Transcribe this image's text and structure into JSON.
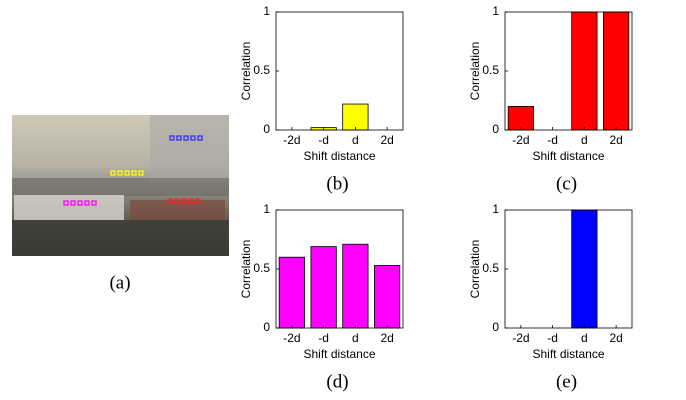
{
  "image_caption": "(a)",
  "chart_data": [
    {
      "type": "bar",
      "caption": "(b)",
      "xlabel": "Shift distance",
      "ylabel": "Correlation",
      "categories": [
        "-2d",
        "-d",
        "d",
        "2d"
      ],
      "values": [
        0,
        0.02,
        0.22,
        0
      ],
      "color": "#ffff00",
      "ylim": [
        0,
        1
      ],
      "yticks": [
        0,
        0.5,
        1
      ],
      "grid": false
    },
    {
      "type": "bar",
      "caption": "(c)",
      "xlabel": "Shift distance",
      "ylabel": "Correlation",
      "categories": [
        "-2d",
        "-d",
        "d",
        "2d"
      ],
      "values": [
        0.2,
        0,
        1,
        1
      ],
      "color": "#ff0000",
      "ylim": [
        0,
        1
      ],
      "yticks": [
        0,
        0.5,
        1
      ],
      "grid": false
    },
    {
      "type": "bar",
      "caption": "(d)",
      "xlabel": "Shift distance",
      "ylabel": "Correlation",
      "categories": [
        "-2d",
        "-d",
        "d",
        "2d"
      ],
      "values": [
        0.6,
        0.69,
        0.71,
        0.53
      ],
      "color": "#ff00ff",
      "ylim": [
        0,
        1
      ],
      "yticks": [
        0,
        0.5,
        1
      ],
      "grid": false
    },
    {
      "type": "bar",
      "caption": "(e)",
      "xlabel": "Shift distance",
      "ylabel": "Correlation",
      "categories": [
        "-2d",
        "-d",
        "d",
        "2d"
      ],
      "values": [
        0,
        0,
        1,
        0
      ],
      "color": "#0000ff",
      "ylim": [
        0,
        1
      ],
      "yticks": [
        0,
        0.5,
        1
      ],
      "grid": false
    }
  ]
}
